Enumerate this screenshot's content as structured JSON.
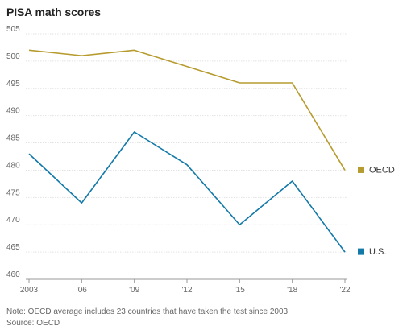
{
  "chart_data": {
    "type": "line",
    "title": "PISA math scores",
    "x": [
      "2003",
      "'06",
      "'09",
      "'12",
      "'15",
      "'18",
      "'22"
    ],
    "series": [
      {
        "name": "OECD",
        "values": [
          502,
          501,
          502,
          499,
          496,
          496,
          480
        ],
        "color": "#b69b2e"
      },
      {
        "name": "U.S.",
        "values": [
          483,
          474,
          487,
          481,
          470,
          478,
          465
        ],
        "color": "#1379a8"
      }
    ],
    "ylim": [
      460,
      505
    ],
    "yticks": [
      460,
      465,
      470,
      475,
      480,
      485,
      490,
      495,
      500,
      505
    ],
    "grid": true,
    "legend": "right",
    "note": "Note: OECD average includes 23 countries that have taken the test since 2003.",
    "source": "Source: OECD"
  }
}
